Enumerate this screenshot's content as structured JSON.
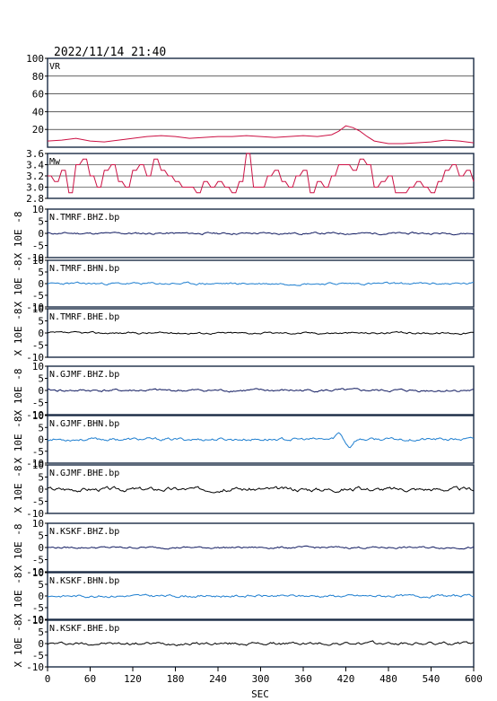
{
  "header": {
    "timestamp": "2022/11/14 21:40"
  },
  "colors": {
    "frame": "#1a2a44",
    "vr": "#cc1144",
    "mw": "#cc1144",
    "trace_dark": "#101a60",
    "trace_light": "#1f7fd0",
    "trace_black": "#000000"
  },
  "chart_data": [
    {
      "type": "line",
      "id": "vr",
      "label": "VR",
      "ylim": [
        0,
        100
      ],
      "yticks": [
        20,
        40,
        60,
        80,
        100
      ],
      "ytick_labels": [
        "20",
        "40",
        "60",
        "80",
        "100"
      ],
      "grid": true,
      "x": [
        0,
        20,
        40,
        60,
        80,
        100,
        120,
        140,
        160,
        180,
        200,
        220,
        240,
        260,
        280,
        300,
        320,
        340,
        360,
        380,
        400,
        410,
        420,
        430,
        440,
        450,
        460,
        480,
        500,
        520,
        540,
        560,
        580,
        600
      ],
      "values": [
        7,
        8,
        10,
        7,
        6,
        8,
        10,
        12,
        13,
        12,
        10,
        11,
        12,
        12,
        13,
        12,
        11,
        12,
        13,
        12,
        14,
        18,
        24,
        22,
        18,
        12,
        7,
        4,
        4,
        5,
        6,
        8,
        7,
        5
      ]
    },
    {
      "type": "line",
      "id": "mw",
      "label": "Mw",
      "ylim": [
        2.8,
        3.6
      ],
      "yticks": [
        2.8,
        3.0,
        3.2,
        3.4,
        3.6
      ],
      "ytick_labels": [
        "2.8",
        "3.0",
        "3.2",
        "3.4",
        "3.6"
      ],
      "grid": true,
      "x": [
        0,
        10,
        20,
        30,
        40,
        50,
        60,
        70,
        80,
        90,
        100,
        110,
        120,
        130,
        140,
        150,
        160,
        170,
        180,
        190,
        200,
        210,
        220,
        230,
        240,
        250,
        260,
        270,
        280,
        290,
        300,
        310,
        320,
        330,
        340,
        350,
        360,
        370,
        380,
        390,
        400,
        410,
        420,
        430,
        440,
        450,
        460,
        470,
        480,
        490,
        500,
        510,
        520,
        530,
        540,
        550,
        560,
        570,
        580,
        590,
        600
      ],
      "values": [
        3.2,
        3.1,
        3.3,
        2.9,
        3.4,
        3.5,
        3.2,
        3.0,
        3.3,
        3.4,
        3.1,
        3.0,
        3.3,
        3.4,
        3.2,
        3.5,
        3.3,
        3.2,
        3.1,
        3.0,
        3.0,
        2.9,
        3.1,
        3.0,
        3.1,
        3.0,
        2.9,
        3.1,
        3.6,
        3.0,
        3.0,
        3.2,
        3.3,
        3.1,
        3.0,
        3.2,
        3.3,
        2.9,
        3.1,
        3.0,
        3.2,
        3.4,
        3.4,
        3.3,
        3.5,
        3.4,
        3.0,
        3.1,
        3.2,
        2.9,
        2.9,
        3.0,
        3.1,
        3.0,
        2.9,
        3.1,
        3.3,
        3.4,
        3.2,
        3.3,
        3.1
      ]
    },
    {
      "type": "line",
      "id": "tmrf_bhz",
      "label": "N.TMRF.BHZ.bp",
      "color_key": "trace_dark",
      "ylim": [
        -10,
        10
      ],
      "yticks": [
        -10,
        -5,
        0,
        5,
        10
      ],
      "ytick_labels": [
        "-10",
        "-5",
        "0",
        "5",
        "10"
      ],
      "seed": 11,
      "amp": 0.6,
      "events": []
    },
    {
      "type": "line",
      "id": "tmrf_bhn",
      "label": "N.TMRF.BHN.bp",
      "color_key": "trace_light",
      "ylim": [
        -10,
        10
      ],
      "yticks": [
        -10,
        -5,
        0,
        5,
        10
      ],
      "ytick_labels": [
        "-10",
        "-5",
        "0",
        "5",
        "10"
      ],
      "seed": 23,
      "amp": 0.7,
      "events": []
    },
    {
      "type": "line",
      "id": "tmrf_bhe",
      "label": "N.TMRF.BHE.bp",
      "color_key": "trace_black",
      "ylim": [
        -10,
        10
      ],
      "yticks": [
        -10,
        -5,
        0,
        5,
        10
      ],
      "ytick_labels": [
        "-10",
        "-5",
        "0",
        "5",
        "10"
      ],
      "seed": 37,
      "amp": 0.6,
      "events": []
    },
    {
      "type": "line",
      "id": "gjmf_bhz",
      "label": "N.GJMF.BHZ.bp",
      "color_key": "trace_dark",
      "ylim": [
        -10,
        10
      ],
      "yticks": [
        -10,
        -5,
        0,
        5,
        10
      ],
      "ytick_labels": [
        "-10",
        "-5",
        "0",
        "5",
        "10"
      ],
      "seed": 41,
      "amp": 0.8,
      "events": []
    },
    {
      "type": "line",
      "id": "gjmf_bhn",
      "label": "N.GJMF.BHN.bp",
      "color_key": "trace_light",
      "ylim": [
        -10,
        10
      ],
      "yticks": [
        -10,
        -5,
        0,
        5,
        10
      ],
      "ytick_labels": [
        "-10",
        "-5",
        "0",
        "5",
        "10"
      ],
      "seed": 53,
      "amp": 0.9,
      "events": [
        [
          410,
          2.5
        ],
        [
          425,
          -3.0
        ]
      ]
    },
    {
      "type": "line",
      "id": "gjmf_bhe",
      "label": "N.GJMF.BHE.bp",
      "color_key": "trace_black",
      "ylim": [
        -10,
        10
      ],
      "yticks": [
        -10,
        -5,
        0,
        5,
        10
      ],
      "ytick_labels": [
        "-10",
        "-5",
        "0",
        "5",
        "10"
      ],
      "seed": 67,
      "amp": 1.2,
      "events": []
    },
    {
      "type": "line",
      "id": "kskf_bhz",
      "label": "N.KSKF.BHZ.bp",
      "color_key": "trace_dark",
      "ylim": [
        -10,
        10
      ],
      "yticks": [
        -10,
        -5,
        0,
        5,
        10
      ],
      "ytick_labels": [
        "-10",
        "-5",
        "0",
        "5",
        "10"
      ],
      "seed": 79,
      "amp": 0.6,
      "events": []
    },
    {
      "type": "line",
      "id": "kskf_bhn",
      "label": "N.KSKF.BHN.bp",
      "color_key": "trace_light",
      "ylim": [
        -10,
        10
      ],
      "yticks": [
        -10,
        -5,
        0,
        5,
        10
      ],
      "ytick_labels": [
        "-10",
        "-5",
        "0",
        "5",
        "10"
      ],
      "seed": 83,
      "amp": 0.8,
      "events": []
    },
    {
      "type": "line",
      "id": "kskf_bhe",
      "label": "N.KSKF.BHE.bp",
      "color_key": "trace_black",
      "ylim": [
        -10,
        10
      ],
      "yticks": [
        -10,
        -5,
        0,
        5,
        10
      ],
      "ytick_labels": [
        "-10",
        "-5",
        "0",
        "5",
        "10"
      ],
      "seed": 97,
      "amp": 0.9,
      "events": []
    }
  ],
  "x_axis": {
    "label": "SEC",
    "xlim": [
      0,
      600
    ],
    "ticks": [
      0,
      60,
      120,
      180,
      240,
      300,
      360,
      420,
      480,
      540,
      600
    ],
    "tick_labels": [
      "0",
      "60",
      "120",
      "180",
      "240",
      "300",
      "360",
      "420",
      "480",
      "540",
      "600"
    ]
  },
  "y_unit_label": "X 10E -8"
}
